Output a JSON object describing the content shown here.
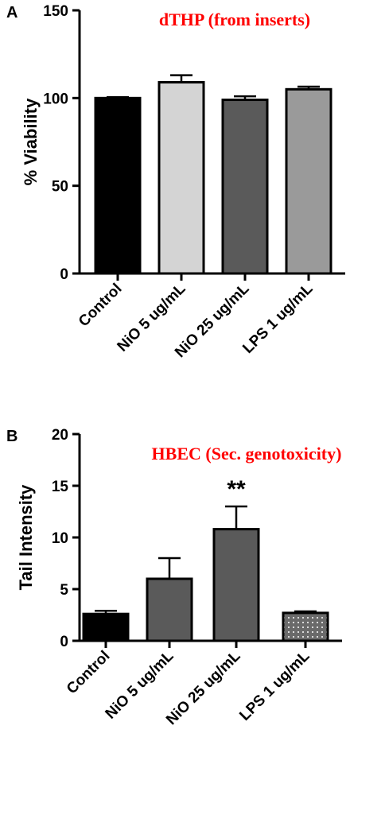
{
  "chart_data": [
    {
      "panel": "A",
      "type": "bar",
      "title": "dTHP (from inserts)",
      "title_color": "#ff0000",
      "ylabel": "% Viability",
      "xlabel": "",
      "ylim": [
        0,
        150
      ],
      "yticks": [
        0,
        50,
        100,
        150
      ],
      "categories": [
        "Control",
        "NiO 5 ug/mL",
        "NiO 25 ug/mL",
        "LPS 1 ug/mL"
      ],
      "values": [
        100,
        109,
        99,
        105
      ],
      "errors": [
        0.5,
        4,
        2,
        1.5
      ],
      "bar_colors": [
        "#000000",
        "#d4d4d4",
        "#5a5a5a",
        "#9a9a9a"
      ],
      "bar_patterns": [
        "none",
        "none",
        "none",
        "none"
      ],
      "annotations": [
        "",
        "",
        "",
        ""
      ]
    },
    {
      "panel": "B",
      "type": "bar",
      "title": "HBEC (Sec. genotoxicity)",
      "title_color": "#ff0000",
      "ylabel": "Tail Intensity",
      "xlabel": "",
      "ylim": [
        0,
        20
      ],
      "yticks": [
        0,
        5,
        10,
        15,
        20
      ],
      "categories": [
        "Control",
        "NiO 5 ug/mL",
        "NiO 25 ug/mL",
        "LPS 1 ug/mL"
      ],
      "values": [
        2.6,
        6.0,
        10.8,
        2.7
      ],
      "errors": [
        0.3,
        2.0,
        2.2,
        0.15
      ],
      "bar_colors": [
        "#000000",
        "#5a5a5a",
        "#5a5a5a",
        "#6a6a6a"
      ],
      "bar_patterns": [
        "none",
        "none",
        "none",
        "dots"
      ],
      "annotations": [
        "",
        "",
        "**",
        ""
      ]
    }
  ]
}
